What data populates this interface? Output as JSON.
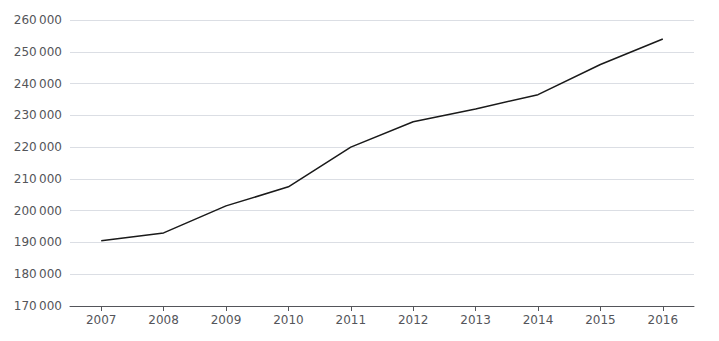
{
  "chart_data": {
    "type": "line",
    "x": [
      2007,
      2008,
      2009,
      2010,
      2011,
      2012,
      2013,
      2014,
      2015,
      2016
    ],
    "values": [
      190500,
      193000,
      201500,
      207500,
      220000,
      228000,
      232000,
      236500,
      246000,
      254000
    ],
    "color": "#1a1a1a",
    "xlim": [
      2006.5,
      2016.5
    ],
    "xticks": [
      2007,
      2008,
      2009,
      2010,
      2011,
      2012,
      2013,
      2014,
      2015,
      2016
    ],
    "ylim": [
      170000,
      260000
    ],
    "yticks": [
      {
        "value": 170000,
        "label": "170 000"
      },
      {
        "value": 180000,
        "label": "180 000"
      },
      {
        "value": 190000,
        "label": "190 000"
      },
      {
        "value": 200000,
        "label": "200 000"
      },
      {
        "value": 210000,
        "label": "210 000"
      },
      {
        "value": 220000,
        "label": "220 000"
      },
      {
        "value": 230000,
        "label": "230 000"
      },
      {
        "value": 240000,
        "label": "240 000"
      },
      {
        "value": 250000,
        "label": "250 000"
      },
      {
        "value": 260000,
        "label": "260 000"
      }
    ],
    "grid": true
  }
}
